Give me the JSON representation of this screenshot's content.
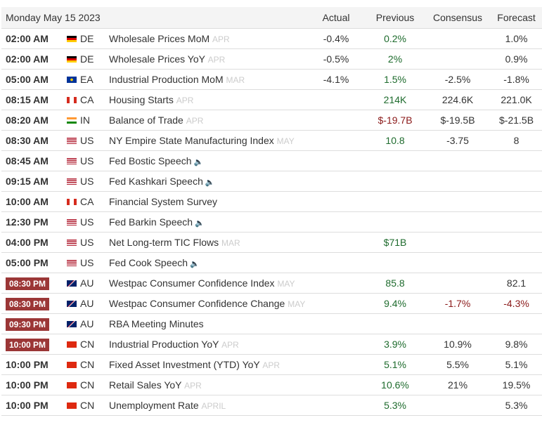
{
  "header": {
    "date": "Monday May 15 2023",
    "actual": "Actual",
    "previous": "Previous",
    "consensus": "Consensus",
    "forecast": "Forecast"
  },
  "colors": {
    "positive": "#1e6b2d",
    "negative": "#8b1a1a",
    "badge": "#9b3636"
  },
  "rows": [
    {
      "time": "02:00 AM",
      "hl": false,
      "country": "DE",
      "event": "Wholesale Prices MoM",
      "period": "APR",
      "speech": false,
      "actual": "-0.4%",
      "previous": "0.2%",
      "pc": "green",
      "consensus": "",
      "cc": "",
      "forecast": "1.0%",
      "fc": ""
    },
    {
      "time": "02:00 AM",
      "hl": false,
      "country": "DE",
      "event": "Wholesale Prices YoY",
      "period": "APR",
      "speech": false,
      "actual": "-0.5%",
      "previous": "2%",
      "pc": "green",
      "consensus": "",
      "cc": "",
      "forecast": "0.9%",
      "fc": ""
    },
    {
      "time": "05:00 AM",
      "hl": false,
      "country": "EA",
      "event": "Industrial Production MoM",
      "period": "MAR",
      "speech": false,
      "actual": "-4.1%",
      "previous": "1.5%",
      "pc": "green",
      "consensus": "-2.5%",
      "cc": "",
      "forecast": "-1.8%",
      "fc": ""
    },
    {
      "time": "08:15 AM",
      "hl": false,
      "country": "CA",
      "event": "Housing Starts",
      "period": "APR",
      "speech": false,
      "actual": "",
      "previous": "214K",
      "pc": "green",
      "consensus": "224.6K",
      "cc": "",
      "forecast": "221.0K",
      "fc": ""
    },
    {
      "time": "08:20 AM",
      "hl": false,
      "country": "IN",
      "event": "Balance of Trade",
      "period": "APR",
      "speech": false,
      "actual": "",
      "previous": "$-19.7B",
      "pc": "red",
      "consensus": "$-19.5B",
      "cc": "",
      "forecast": "$-21.5B",
      "fc": ""
    },
    {
      "time": "08:30 AM",
      "hl": false,
      "country": "US",
      "event": "NY Empire State Manufacturing Index",
      "period": "MAY",
      "speech": false,
      "actual": "",
      "previous": "10.8",
      "pc": "green",
      "consensus": "-3.75",
      "cc": "",
      "forecast": "8",
      "fc": ""
    },
    {
      "time": "08:45 AM",
      "hl": false,
      "country": "US",
      "event": "Fed Bostic Speech",
      "period": "",
      "speech": true,
      "actual": "",
      "previous": "",
      "pc": "",
      "consensus": "",
      "cc": "",
      "forecast": "",
      "fc": ""
    },
    {
      "time": "09:15 AM",
      "hl": false,
      "country": "US",
      "event": "Fed Kashkari Speech",
      "period": "",
      "speech": true,
      "actual": "",
      "previous": "",
      "pc": "",
      "consensus": "",
      "cc": "",
      "forecast": "",
      "fc": ""
    },
    {
      "time": "10:00 AM",
      "hl": false,
      "country": "CA",
      "event": "Financial System Survey",
      "period": "",
      "speech": false,
      "actual": "",
      "previous": "",
      "pc": "",
      "consensus": "",
      "cc": "",
      "forecast": "",
      "fc": ""
    },
    {
      "time": "12:30 PM",
      "hl": false,
      "country": "US",
      "event": "Fed Barkin Speech",
      "period": "",
      "speech": true,
      "actual": "",
      "previous": "",
      "pc": "",
      "consensus": "",
      "cc": "",
      "forecast": "",
      "fc": ""
    },
    {
      "time": "04:00 PM",
      "hl": false,
      "country": "US",
      "event": "Net Long-term TIC Flows",
      "period": "MAR",
      "speech": false,
      "actual": "",
      "previous": "$71B",
      "pc": "green",
      "consensus": "",
      "cc": "",
      "forecast": "",
      "fc": ""
    },
    {
      "time": "05:00 PM",
      "hl": false,
      "country": "US",
      "event": "Fed Cook Speech",
      "period": "",
      "speech": true,
      "actual": "",
      "previous": "",
      "pc": "",
      "consensus": "",
      "cc": "",
      "forecast": "",
      "fc": ""
    },
    {
      "time": "08:30 PM",
      "hl": true,
      "country": "AU",
      "event": "Westpac Consumer Confidence Index",
      "period": "MAY",
      "speech": false,
      "actual": "",
      "previous": "85.8",
      "pc": "green",
      "consensus": "",
      "cc": "",
      "forecast": "82.1",
      "fc": ""
    },
    {
      "time": "08:30 PM",
      "hl": true,
      "country": "AU",
      "event": "Westpac Consumer Confidence Change",
      "period": "MAY",
      "speech": false,
      "actual": "",
      "previous": "9.4%",
      "pc": "green",
      "consensus": "-1.7%",
      "cc": "red",
      "forecast": "-4.3%",
      "fc": "red"
    },
    {
      "time": "09:30 PM",
      "hl": true,
      "country": "AU",
      "event": "RBA Meeting Minutes",
      "period": "",
      "speech": false,
      "actual": "",
      "previous": "",
      "pc": "",
      "consensus": "",
      "cc": "",
      "forecast": "",
      "fc": ""
    },
    {
      "time": "10:00 PM",
      "hl": true,
      "country": "CN",
      "event": "Industrial Production YoY",
      "period": "APR",
      "speech": false,
      "actual": "",
      "previous": "3.9%",
      "pc": "green",
      "consensus": "10.9%",
      "cc": "",
      "forecast": "9.8%",
      "fc": ""
    },
    {
      "time": "10:00 PM",
      "hl": false,
      "country": "CN",
      "event": "Fixed Asset Investment (YTD) YoY",
      "period": "APR",
      "speech": false,
      "actual": "",
      "previous": "5.1%",
      "pc": "green",
      "consensus": "5.5%",
      "cc": "",
      "forecast": "5.1%",
      "fc": ""
    },
    {
      "time": "10:00 PM",
      "hl": false,
      "country": "CN",
      "event": "Retail Sales YoY",
      "period": "APR",
      "speech": false,
      "actual": "",
      "previous": "10.6%",
      "pc": "green",
      "consensus": "21%",
      "cc": "",
      "forecast": "19.5%",
      "fc": ""
    },
    {
      "time": "10:00 PM",
      "hl": false,
      "country": "CN",
      "event": "Unemployment Rate",
      "period": "APRIL",
      "speech": false,
      "actual": "",
      "previous": "5.3%",
      "pc": "green",
      "consensus": "",
      "cc": "",
      "forecast": "5.3%",
      "fc": ""
    }
  ]
}
